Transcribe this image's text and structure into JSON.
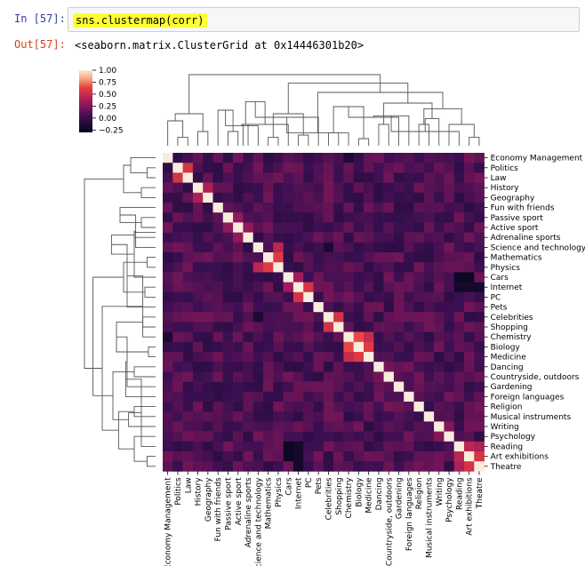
{
  "notebook": {
    "in_prompt": "In [57]:",
    "code": "sns.clustermap(corr)",
    "out_prompt": "Out[57]:",
    "output_text": "<seaborn.matrix.ClusterGrid at 0x14446301b20>"
  },
  "chart_data": {
    "type": "heatmap",
    "labels": [
      "Economy Management",
      "Politics",
      "Law",
      "History",
      "Geography",
      "Fun with friends",
      "Passive sport",
      "Active sport",
      "Adrenaline sports",
      "Science and technology",
      "Mathematics",
      "Physics",
      "Cars",
      "Internet",
      "PC",
      "Pets",
      "Celebrities",
      "Shopping",
      "Chemistry",
      "Biology",
      "Medicine",
      "Dancing",
      "Countryside, outdoors",
      "Gardening",
      "Foreign languages",
      "Religion",
      "Musical instruments",
      "Writing",
      "Psychology",
      "Reading",
      "Art exhibitions",
      "Theatre"
    ],
    "colorbar": {
      "ticks": [
        "1.00",
        "0.75",
        "0.50",
        "0.25",
        "0.00",
        "−0.25"
      ],
      "min": -0.3,
      "max": 1.0
    },
    "colors": {
      "low": "#03051a",
      "mid": "#a11a5b",
      "high": "#faebdd"
    }
  }
}
